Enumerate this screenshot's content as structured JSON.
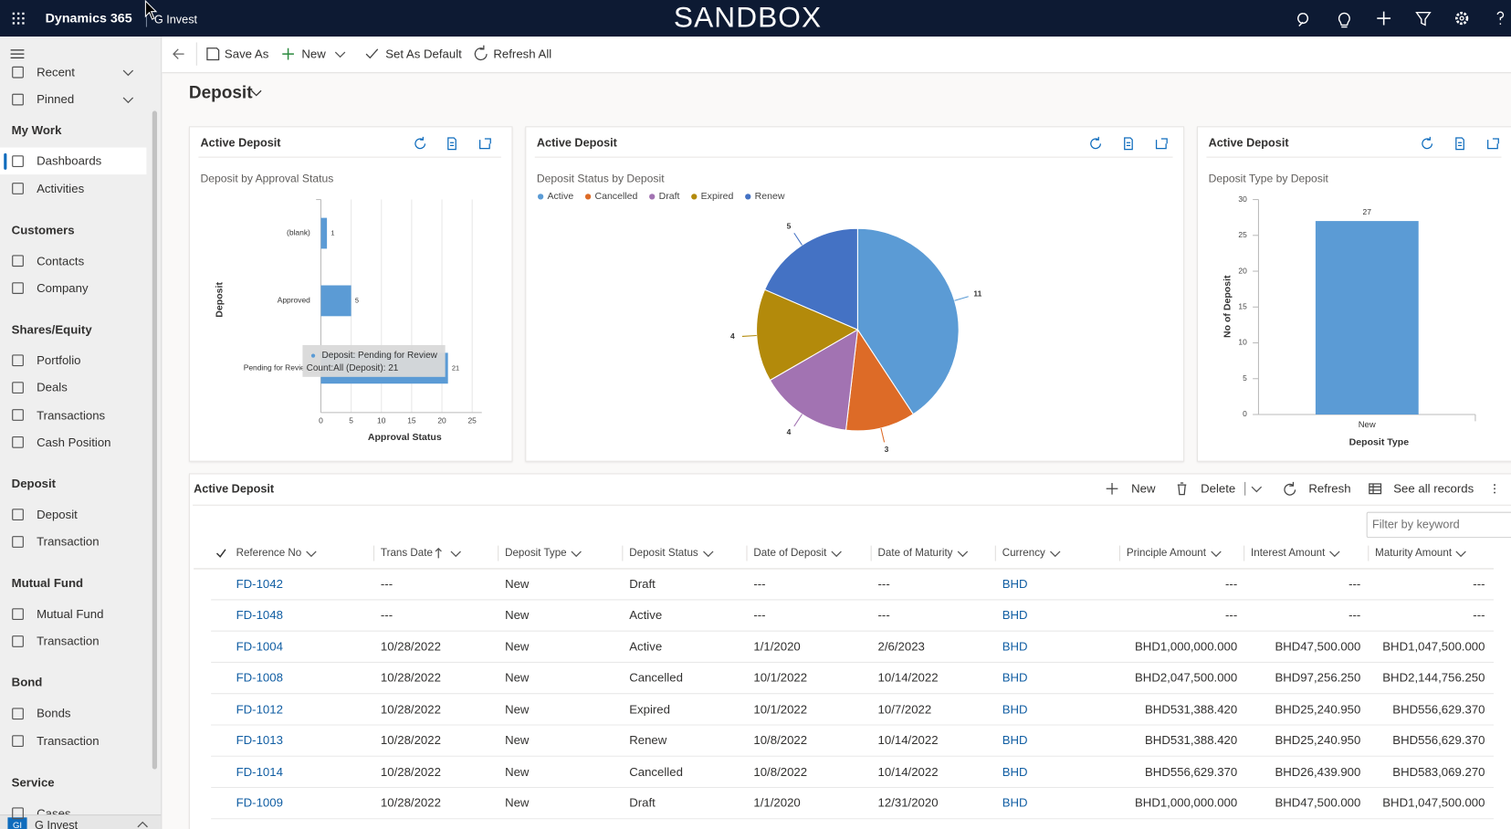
{
  "topbar": {
    "app": "Dynamics 365",
    "area": "G Invest",
    "environment": "SANDBOX"
  },
  "sidebar": {
    "sections": [
      {
        "items": [
          "Recent",
          "Pinned"
        ]
      },
      {
        "title": "My Work",
        "items": [
          "Dashboards",
          "Activities"
        ]
      },
      {
        "title": "Customers",
        "items": [
          "Contacts",
          "Company"
        ]
      },
      {
        "title": "Shares/Equity",
        "items": [
          "Portfolio",
          "Deals",
          "Transactions",
          "Cash Position"
        ]
      },
      {
        "title": "Deposit",
        "items": [
          "Deposit",
          "Transaction"
        ]
      },
      {
        "title": "Mutual Fund",
        "items": [
          "Mutual Fund",
          "Transaction"
        ]
      },
      {
        "title": "Bond",
        "items": [
          "Bonds",
          "Transaction"
        ]
      },
      {
        "title": "Service",
        "items": [
          "Cases"
        ]
      }
    ],
    "footer": "G Invest",
    "footer_badge": "GI"
  },
  "toolbar": [
    "Save As",
    "New",
    "Set As Default",
    "Refresh All"
  ],
  "dashboard_title": "Deposit",
  "charts": [
    {
      "type": "bar",
      "orientation": "horizontal",
      "title": "Active Deposit",
      "subtitle": "Deposit by Approval Status",
      "categories": [
        "(blank)",
        "Approved",
        "Pending for Review"
      ],
      "values": [
        1,
        5,
        21
      ],
      "color": "#5b9bd5",
      "xlim": [
        0,
        25
      ],
      "xticks": [
        0,
        5,
        10,
        15,
        20,
        25
      ],
      "xlabel": "Approval Status",
      "ylabel": "Deposit",
      "grid": true,
      "tooltip": [
        "Deposit: Pending for Review",
        "Count:All (Deposit): 21"
      ]
    },
    {
      "type": "pie",
      "title": "Active Deposit",
      "subtitle": "Deposit Status by Deposit",
      "categories": [
        "Active",
        "Cancelled",
        "Draft",
        "Expired",
        "Renew"
      ],
      "values": [
        11,
        3,
        4,
        4,
        5
      ],
      "colors": [
        "#5b9bd5",
        "#dd6b27",
        "#a273b2",
        "#b38a0b",
        "#4472c4"
      ],
      "legend": "top-left"
    },
    {
      "type": "bar",
      "orientation": "vertical",
      "title": "Active Deposit",
      "subtitle": "Deposit Type by Deposit",
      "categories": [
        "New"
      ],
      "values": [
        27
      ],
      "color": "#5b9bd5",
      "ylim": [
        0,
        30
      ],
      "yticks": [
        0,
        5,
        10,
        15,
        20,
        25,
        30
      ],
      "xlabel": "Deposit Type",
      "ylabel": "No of Deposit",
      "grid": false
    }
  ],
  "grid": {
    "title": "Active Deposit",
    "commands": [
      "New",
      "Delete",
      "Refresh",
      "See all records"
    ],
    "filter_placeholder": "Filter by keyword",
    "columns": [
      "Reference No",
      "Trans Date",
      "Deposit Type",
      "Deposit Status",
      "Date of Deposit",
      "Date of Maturity",
      "Currency",
      "Principle Amount",
      "Interest Amount",
      "Maturity Amount"
    ],
    "rows": [
      [
        "FD-1042",
        "---",
        "New",
        "Draft",
        "---",
        "---",
        "BHD",
        "---",
        "---",
        "---"
      ],
      [
        "FD-1048",
        "---",
        "New",
        "Active",
        "---",
        "---",
        "BHD",
        "---",
        "---",
        "---"
      ],
      [
        "FD-1004",
        "10/28/2022",
        "New",
        "Active",
        "1/1/2020",
        "2/6/2023",
        "BHD",
        "BHD1,000,000.000",
        "BHD47,500.000",
        "BHD1,047,500.000"
      ],
      [
        "FD-1008",
        "10/28/2022",
        "New",
        "Cancelled",
        "10/1/2022",
        "10/14/2022",
        "BHD",
        "BHD2,047,500.000",
        "BHD97,256.250",
        "BHD2,144,756.250"
      ],
      [
        "FD-1012",
        "10/28/2022",
        "New",
        "Expired",
        "10/1/2022",
        "10/7/2022",
        "BHD",
        "BHD531,388.420",
        "BHD25,240.950",
        "BHD556,629.370"
      ],
      [
        "FD-1013",
        "10/28/2022",
        "New",
        "Renew",
        "10/8/2022",
        "10/14/2022",
        "BHD",
        "BHD531,388.420",
        "BHD25,240.950",
        "BHD556,629.370"
      ],
      [
        "FD-1014",
        "10/28/2022",
        "New",
        "Cancelled",
        "10/8/2022",
        "10/14/2022",
        "BHD",
        "BHD556,629.370",
        "BHD26,439.900",
        "BHD583,069.270"
      ],
      [
        "FD-1009",
        "10/28/2022",
        "New",
        "Draft",
        "1/1/2020",
        "12/31/2020",
        "BHD",
        "BHD1,000,000.000",
        "BHD47,500.000",
        "BHD1,047,500.000"
      ]
    ]
  }
}
